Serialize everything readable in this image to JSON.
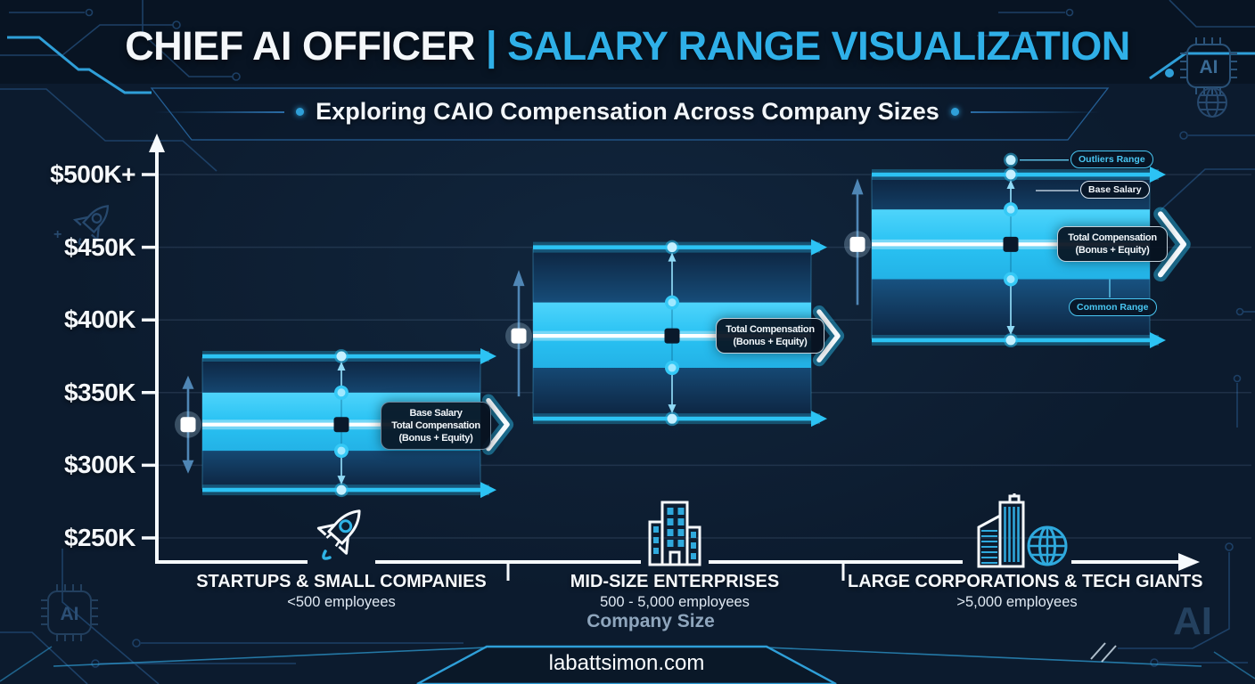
{
  "header": {
    "title_left": "CHIEF AI OFFICER",
    "title_separator": "|",
    "title_right": "SALARY RANGE VISUALIZATION",
    "subtitle": "Exploring CAIO Compensation Across Company Sizes"
  },
  "footer": {
    "website": "labattsimon.com"
  },
  "deco": {
    "ai_chip_label": "AI",
    "ai_watermark": "AI",
    "plus_glyph": "+"
  },
  "chart_data": {
    "type": "box",
    "title": "Chief AI Officer | Salary Range Visualization",
    "subtitle": "Exploring CAIO Compensation Across Company Sizes",
    "xlabel": "Company Size",
    "ylabel": "",
    "units": "USD thousands per year",
    "ylim": [
      250,
      520
    ],
    "grid": true,
    "y_ticks": [
      {
        "label": "$500K+",
        "value": 500
      },
      {
        "label": "$450K",
        "value": 450
      },
      {
        "label": "$400K",
        "value": 400
      },
      {
        "label": "$350K",
        "value": 350
      },
      {
        "label": "$300K",
        "value": 300
      },
      {
        "label": "$250K",
        "value": 250
      }
    ],
    "categories": [
      {
        "name": "STARTUPS & SMALL COMPANIES",
        "sub": "<500 employees",
        "icon": "rocket-icon"
      },
      {
        "name": "MID-SIZE ENTERPRISES",
        "sub": "500 - 5,000 employees",
        "icon": "office-building-icon"
      },
      {
        "name": "LARGE CORPORATIONS & TECH GIANTS",
        "sub": ">5,000 employees",
        "icon": "skyscraper-globe-icon"
      }
    ],
    "series": [
      {
        "category": "Startups & Small Companies",
        "outlier_low": 283,
        "common_low": 310,
        "total_compensation_median": 328,
        "common_high": 350,
        "outlier_high": 375
      },
      {
        "category": "Mid-Size Enterprises",
        "outlier_low": 332,
        "common_low": 367,
        "total_compensation_median": 389,
        "common_high": 412,
        "outlier_high": 450
      },
      {
        "category": "Large Corporations & Tech Giants",
        "outlier_low": 386,
        "common_low": 428,
        "total_compensation_median": 452,
        "common_high": 476,
        "outlier_high": 500,
        "outlier_extreme": 510
      }
    ],
    "annotations": {
      "startups_callout": [
        "Base Salary",
        "Total Compensation",
        "(Bonus + Equity)"
      ],
      "midsize_callout": [
        "Total Compensation",
        "(Bonus + Equity)"
      ],
      "large_callout": [
        "Total Compensation",
        "(Bonus + Equity)"
      ],
      "outliers_pill": "Outliers Range",
      "base_salary_pill": "Base Salary",
      "common_range_pill": "Common Range"
    },
    "accent_colors": {
      "bright_cyan": "#29c4f4",
      "title_cyan": "#2fb0e8",
      "steel_blue": "#4f86b5",
      "background_navy": "#0c1b2e",
      "white": "#f5f8fb"
    }
  }
}
